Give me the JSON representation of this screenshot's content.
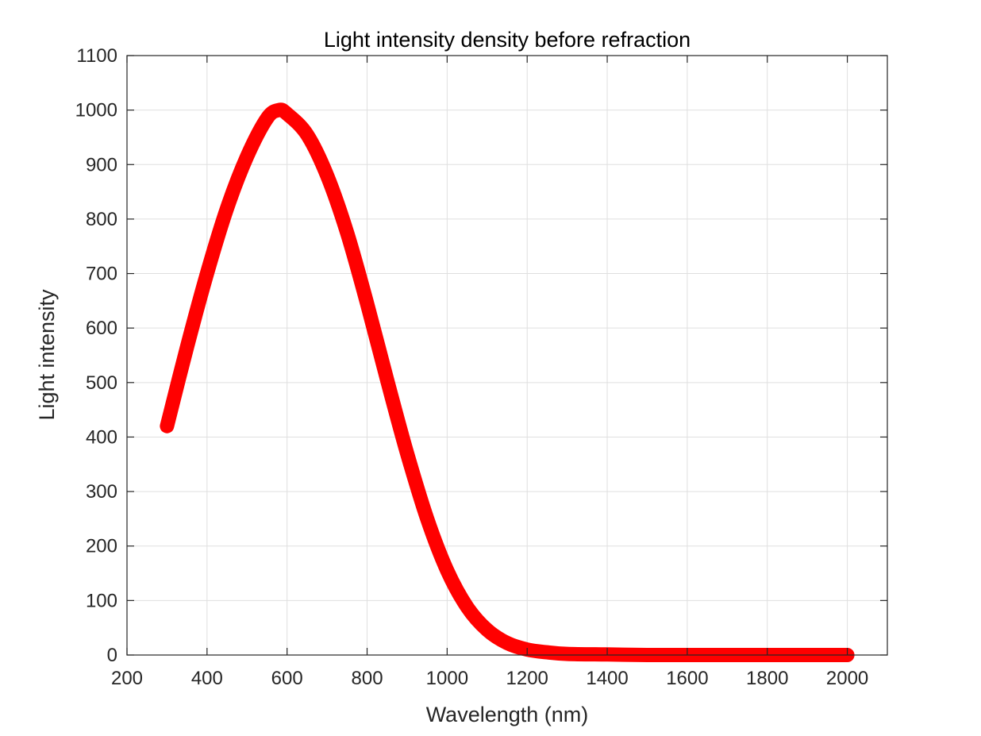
{
  "chart_data": {
    "type": "line",
    "title": "Light intensity density before refraction",
    "xlabel": "Wavelength (nm)",
    "ylabel": "Light intensity",
    "xlim": [
      200,
      2100
    ],
    "ylim": [
      0,
      1100
    ],
    "xticks": [
      200,
      400,
      600,
      800,
      1000,
      1200,
      1400,
      1600,
      1800,
      2000
    ],
    "yticks": [
      0,
      100,
      200,
      300,
      400,
      500,
      600,
      700,
      800,
      900,
      1000,
      1100
    ],
    "grid": true,
    "series": [
      {
        "color": "#ff0000",
        "x": [
          300,
          350,
          400,
          450,
          500,
          550,
          580,
          600,
          650,
          700,
          750,
          800,
          850,
          900,
          950,
          1000,
          1050,
          1100,
          1150,
          1200,
          1250,
          1300,
          1400,
          1500,
          1600,
          1800,
          2000
        ],
        "y": [
          420,
          565,
          700,
          820,
          915,
          985,
          1000,
          993,
          955,
          880,
          775,
          645,
          505,
          370,
          250,
          155,
          88,
          46,
          22,
          10,
          5,
          2,
          1,
          0,
          0,
          0,
          0
        ]
      }
    ]
  }
}
